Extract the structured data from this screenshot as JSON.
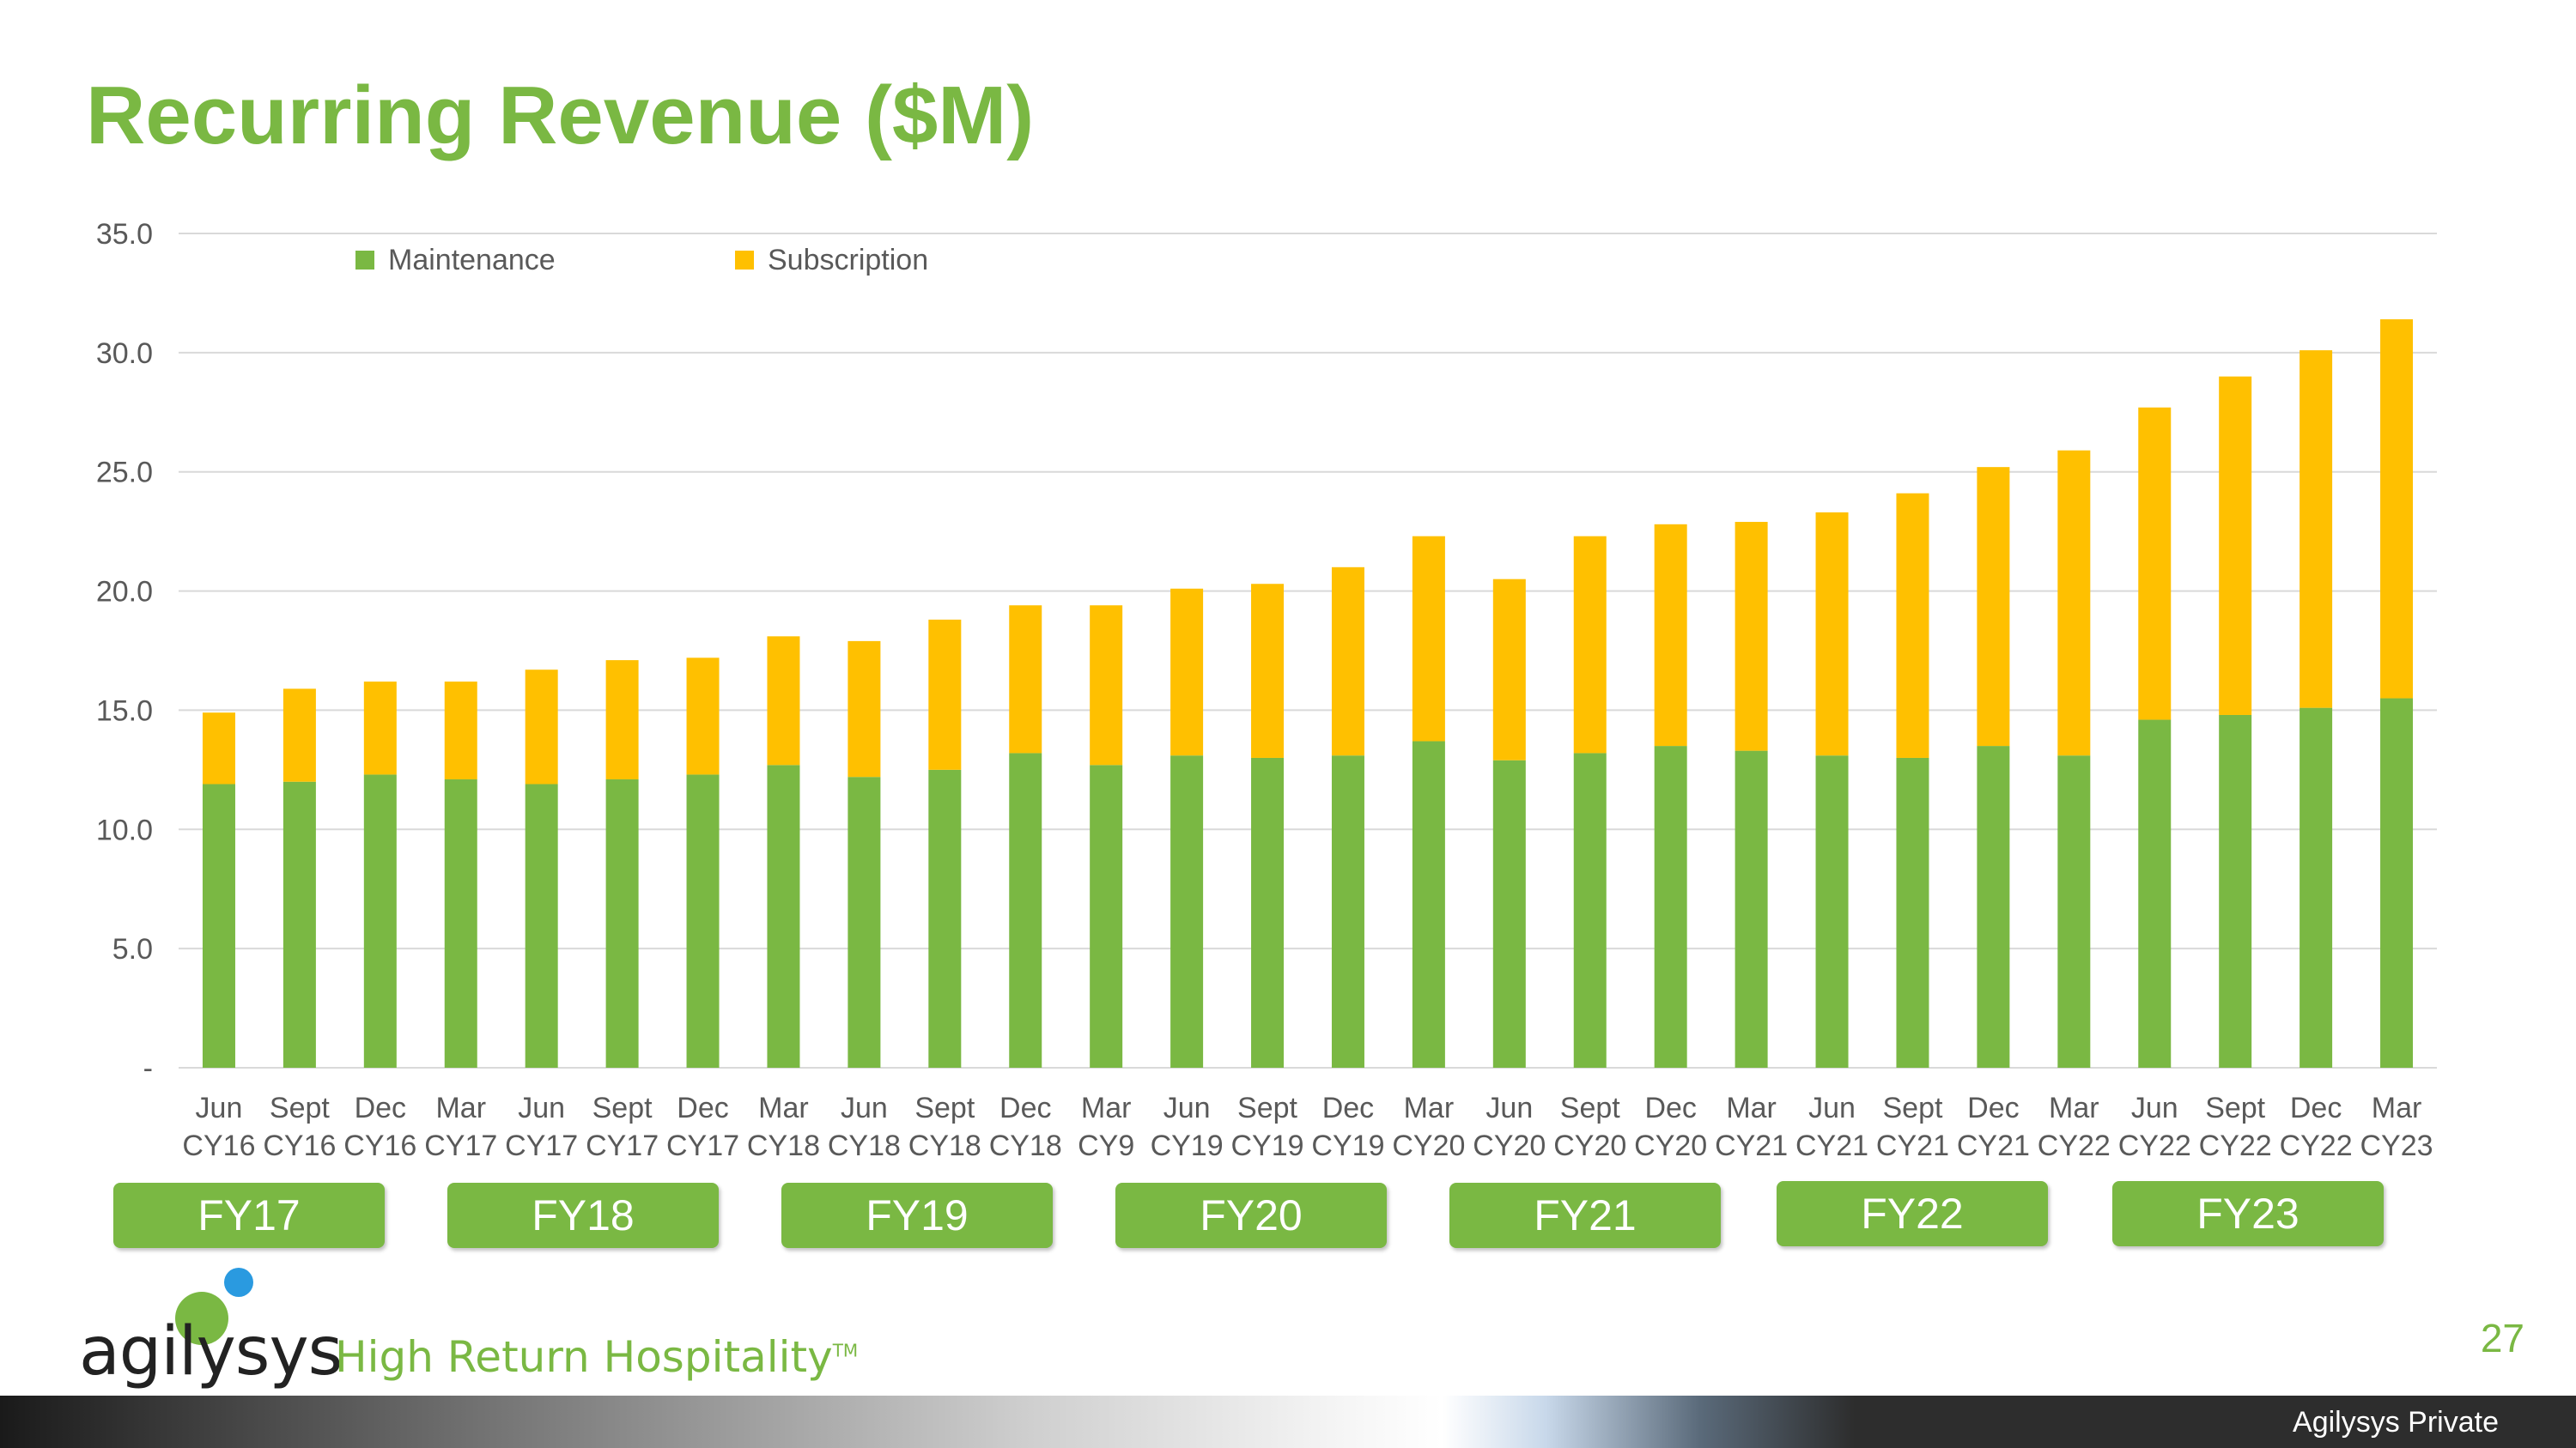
{
  "slide": {
    "title": "Recurring Revenue ($M)",
    "page_number": "27",
    "footer": "Agilysys Private",
    "brand": {
      "wordmark": "agilysys",
      "tagline": "High Return Hospitality",
      "tm": "TM"
    },
    "fiscal_years": [
      "FY17",
      "FY18",
      "FY19",
      "FY20",
      "FY21",
      "FY22",
      "FY23"
    ]
  },
  "colors": {
    "maintenance": "#7ab843",
    "subscription": "#ffc000",
    "title": "#7ab843",
    "grid": "#d9d9d9",
    "text": "#595959"
  },
  "chart_data": {
    "type": "bar",
    "stacked": true,
    "title": "Recurring Revenue ($M)",
    "ylim": [
      0,
      35
    ],
    "y_ticks": [
      {
        "value": 0,
        "label": "-"
      },
      {
        "value": 5,
        "label": "5.0"
      },
      {
        "value": 10,
        "label": "10.0"
      },
      {
        "value": 15,
        "label": "15.0"
      },
      {
        "value": 20,
        "label": "20.0"
      },
      {
        "value": 25,
        "label": "25.0"
      },
      {
        "value": 30,
        "label": "30.0"
      },
      {
        "value": 35,
        "label": "35.0"
      }
    ],
    "grid": true,
    "legend_position": "top-left",
    "categories": [
      [
        "Jun",
        "CY16"
      ],
      [
        "Sept",
        "CY16"
      ],
      [
        "Dec",
        "CY16"
      ],
      [
        "Mar",
        "CY17"
      ],
      [
        "Jun",
        "CY17"
      ],
      [
        "Sept",
        "CY17"
      ],
      [
        "Dec",
        "CY17"
      ],
      [
        "Mar",
        "CY18"
      ],
      [
        "Jun",
        "CY18"
      ],
      [
        "Sept",
        "CY18"
      ],
      [
        "Dec",
        "CY18"
      ],
      [
        "Mar",
        "CY9"
      ],
      [
        "Jun",
        "CY19"
      ],
      [
        "Sept",
        "CY19"
      ],
      [
        "Dec",
        "CY19"
      ],
      [
        "Mar",
        "CY20"
      ],
      [
        "Jun",
        "CY20"
      ],
      [
        "Sept",
        "CY20"
      ],
      [
        "Dec",
        "CY20"
      ],
      [
        "Mar",
        "CY21"
      ],
      [
        "Jun",
        "CY21"
      ],
      [
        "Sept",
        "CY21"
      ],
      [
        "Dec",
        "CY21"
      ],
      [
        "Mar",
        "CY22"
      ],
      [
        "Jun",
        "CY22"
      ],
      [
        "Sept",
        "CY22"
      ],
      [
        "Dec",
        "CY22"
      ],
      [
        "Mar",
        "CY23"
      ]
    ],
    "series": [
      {
        "name": "Maintenance",
        "color": "#7ab843",
        "values": [
          11.9,
          12.0,
          12.3,
          12.1,
          11.9,
          12.1,
          12.3,
          12.7,
          12.2,
          12.5,
          13.2,
          12.7,
          13.1,
          13.0,
          13.1,
          13.7,
          12.9,
          13.2,
          13.5,
          13.3,
          13.1,
          13.0,
          13.5,
          13.1,
          14.6,
          14.8,
          15.1,
          15.5
        ]
      },
      {
        "name": "Subscription",
        "color": "#ffc000",
        "values": [
          3.0,
          3.9,
          3.9,
          4.1,
          4.8,
          5.0,
          4.9,
          5.4,
          5.7,
          6.3,
          6.2,
          6.7,
          7.0,
          7.3,
          7.9,
          8.6,
          7.6,
          9.1,
          9.3,
          9.6,
          10.2,
          11.1,
          11.7,
          12.8,
          13.1,
          14.2,
          15.0,
          15.9
        ]
      }
    ]
  }
}
